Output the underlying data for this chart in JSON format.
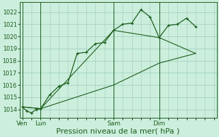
{
  "bg_color": "#cceedd",
  "grid_color": "#99ccbb",
  "line_color": "#1a5c1a",
  "marker_color": "#1a5c1a",
  "xlabel": "Pression niveau de la mer( hPa )",
  "xlabel_fontsize": 8,
  "ylim": [
    1013.3,
    1022.8
  ],
  "yticks": [
    1014,
    1015,
    1016,
    1017,
    1018,
    1019,
    1020,
    1021,
    1022
  ],
  "xtick_labels": [
    "Ven",
    "Lun",
    "Sam",
    "Dim"
  ],
  "xtick_positions": [
    0,
    2,
    10,
    15
  ],
  "xlim": [
    -0.3,
    21.3
  ],
  "series1_x": [
    0,
    0.5,
    1,
    1.5,
    2,
    3,
    4,
    5,
    6,
    7,
    8,
    9,
    10,
    11,
    12,
    13,
    14,
    15,
    16,
    17,
    18,
    19
  ],
  "series1_y": [
    1014.2,
    1013.85,
    1013.7,
    1014.0,
    1014.05,
    1015.2,
    1015.9,
    1016.2,
    1018.6,
    1018.7,
    1019.4,
    1019.5,
    1020.5,
    1021.0,
    1021.1,
    1022.2,
    1021.6,
    1019.9,
    1020.9,
    1021.0,
    1021.5,
    1020.8
  ],
  "series2_x": [
    0,
    2,
    10,
    15,
    19
  ],
  "series2_y": [
    1014.2,
    1014.05,
    1020.5,
    1019.9,
    1018.6
  ],
  "series3_x": [
    0,
    2,
    10,
    15,
    19
  ],
  "series3_y": [
    1014.2,
    1014.05,
    1016.0,
    1017.8,
    1018.6
  ],
  "vline_x": [
    0,
    2,
    10,
    15
  ],
  "vline_color": "#1a5c1a"
}
